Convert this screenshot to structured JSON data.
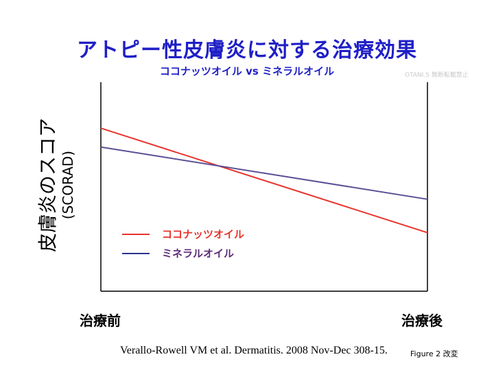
{
  "chart_data": {
    "type": "line",
    "title": "アトピー性皮膚炎に対する治療効果",
    "subtitle": "ココナッツオイル vs ミネラルオイル",
    "ylabel_line1": "皮膚炎のスコア",
    "ylabel_line2": "(SCORAD)",
    "categories": [
      "治療前",
      "治療後"
    ],
    "ylim": [
      0,
      100
    ],
    "series": [
      {
        "name": "ココナッツオイル",
        "color": "#e8322b",
        "values": [
          78,
          28
        ]
      },
      {
        "name": "ミネラルオイル",
        "color": "#5b4f95",
        "values": [
          69,
          44
        ]
      }
    ],
    "legend_placement": "lower-left",
    "grid": false
  },
  "watermark": "OTANI.S 無断転載禁止",
  "citation": "Verallo-Rowell VM et al. Dermatitis. 2008 Nov-Dec 308-15.",
  "figure_note": "Figure 2 改変",
  "colors": {
    "title": "#1f1fc7",
    "axis": "#000000",
    "legend_text_1": "#e8322b",
    "legend_text_2": "#5b2a78"
  }
}
